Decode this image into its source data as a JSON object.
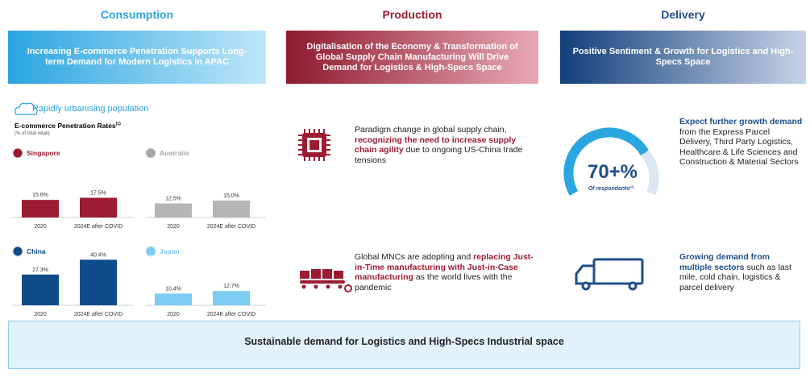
{
  "columns": [
    {
      "heading": "Consumption",
      "banner": "Increasing E-commerce Penetration Supports Long-term Demand for Modern Logistics in APAC"
    },
    {
      "heading": "Production",
      "banner": "Digitalisation of the Economy & Transformation of Global Supply Chain Manufacturing Will Drive Demand for Logistics & High-Specs Space"
    },
    {
      "heading": "Delivery",
      "banner": "Positive Sentiment & Growth for Logistics and High-Specs Space"
    }
  ],
  "consumption": {
    "subtitle": "Rapidly urbanising population",
    "chart_title": "E-commerce Penetration Rates",
    "chart_title_sup": "(1)",
    "chart_note": "(% of total retail)",
    "charts": [
      {
        "type": "bar",
        "name": "Singapore",
        "categories": [
          "2020",
          "2024E after COVID"
        ],
        "values": [
          15.6,
          17.5
        ],
        "value_labels": [
          "15.6%",
          "17.5%"
        ],
        "color": "#9b1b30",
        "name_color": "#9b1b30"
      },
      {
        "type": "bar",
        "name": "Australia",
        "categories": [
          "2020",
          "2024E after COVID"
        ],
        "values": [
          12.5,
          15.0
        ],
        "value_labels": [
          "12.5%",
          "15.0%"
        ],
        "color": "#b5b5b5",
        "name_color": "#a6a6a6"
      },
      {
        "type": "bar",
        "name": "China",
        "categories": [
          "2020",
          "2024E after COVID"
        ],
        "values": [
          27.3,
          40.4
        ],
        "value_labels": [
          "27.3%",
          "40.4%"
        ],
        "color": "#0f4c8a",
        "name_color": "#0f4c8a"
      },
      {
        "type": "bar",
        "name": "Japan",
        "categories": [
          "2020",
          "2024E after COVID"
        ],
        "values": [
          10.4,
          12.7
        ],
        "value_labels": [
          "10.4%",
          "12.7%"
        ],
        "color": "#7ccbf2",
        "name_color": "#7ccbf2"
      }
    ]
  },
  "production": {
    "items": [
      {
        "segments": [
          {
            "text": "Paradigm change in global supply chain, "
          },
          {
            "text": "recognizing the need to increase supply chain agility",
            "bold": true
          },
          {
            "text": " due to ongoing US-China trade tensions"
          }
        ]
      },
      {
        "segments": [
          {
            "text": "Global MNCs are adopting and "
          },
          {
            "text": "replacing Just-in-Time manufacturing with Just-in-Case manufacturing",
            "bold": true
          },
          {
            "text": " as the world lives with the pandemic"
          }
        ]
      }
    ]
  },
  "delivery": {
    "stat": "70+%",
    "stat_note": "Of respondents",
    "stat_note_sup": "(2)",
    "items": [
      {
        "segments": [
          {
            "text": "Expect further growth demand",
            "bold": true
          },
          {
            "text": " from the Express Parcel Delivery, Third Party Logistics, Healthcare & Life Sciences and Construction & Material Sectors"
          }
        ]
      },
      {
        "segments": [
          {
            "text": "Growing demand from multiple sectors",
            "bold": true
          },
          {
            "text": " such as last mile, cold chain, logistics & parcel delivery"
          }
        ]
      }
    ]
  },
  "footer": "Sustainable demand for Logistics and High-Specs Industrial space"
}
